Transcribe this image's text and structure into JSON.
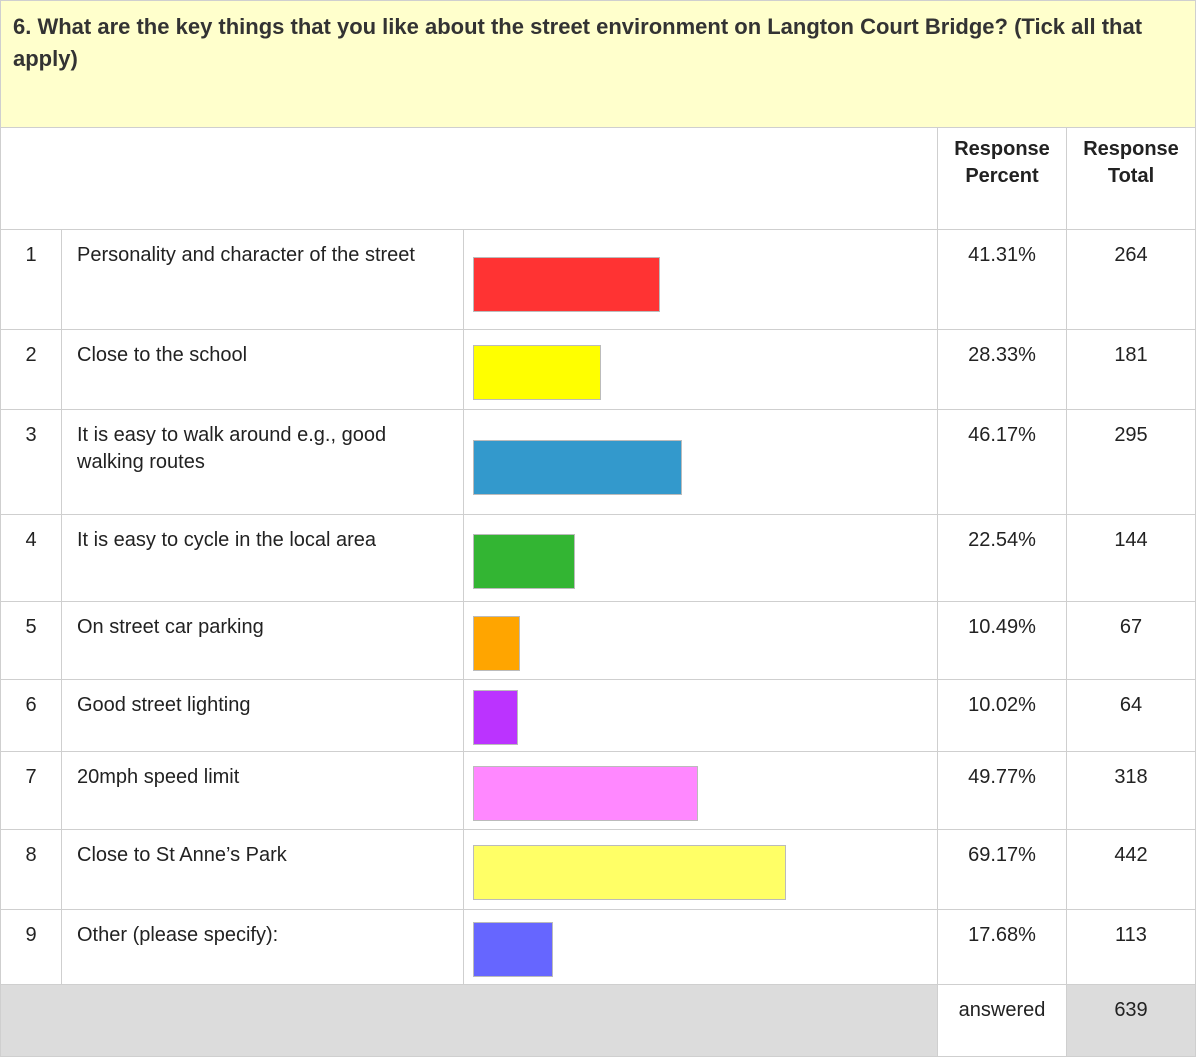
{
  "chart_data": {
    "type": "bar",
    "title": "6. What are the key things that you like about the street environment on Langton Court Bridge? (Tick all that apply)",
    "headers": [
      "Response Percent",
      "Response Total"
    ],
    "row_numbers": [
      1,
      2,
      3,
      4,
      5,
      6,
      7,
      8,
      9
    ],
    "categories": [
      "Personality and character of the street",
      "Close to the school",
      "It is easy to walk around e.g., good walking routes",
      "It is easy to cycle in the local area",
      "On street car parking",
      "Good street lighting",
      "20mph speed limit",
      "Close to St Anne’s Park",
      "Other (please specify):"
    ],
    "values": [
      41.31,
      28.33,
      46.17,
      22.54,
      10.49,
      10.02,
      49.77,
      69.17,
      17.68
    ],
    "value_labels": [
      "41.31%",
      "28.33%",
      "46.17%",
      "22.54%",
      "10.49%",
      "10.02%",
      "49.77%",
      "69.17%",
      "17.68%"
    ],
    "totals": [
      264,
      181,
      295,
      144,
      67,
      64,
      318,
      442,
      113
    ],
    "colors": [
      "#ff3333",
      "#ffff00",
      "#3399cc",
      "#33b533",
      "#ffa500",
      "#bb33ff",
      "#ff88ff",
      "#ffff66",
      "#6666ff"
    ],
    "footer": {
      "label": "answered",
      "total": 639
    },
    "xlim": [
      0,
      100
    ]
  }
}
